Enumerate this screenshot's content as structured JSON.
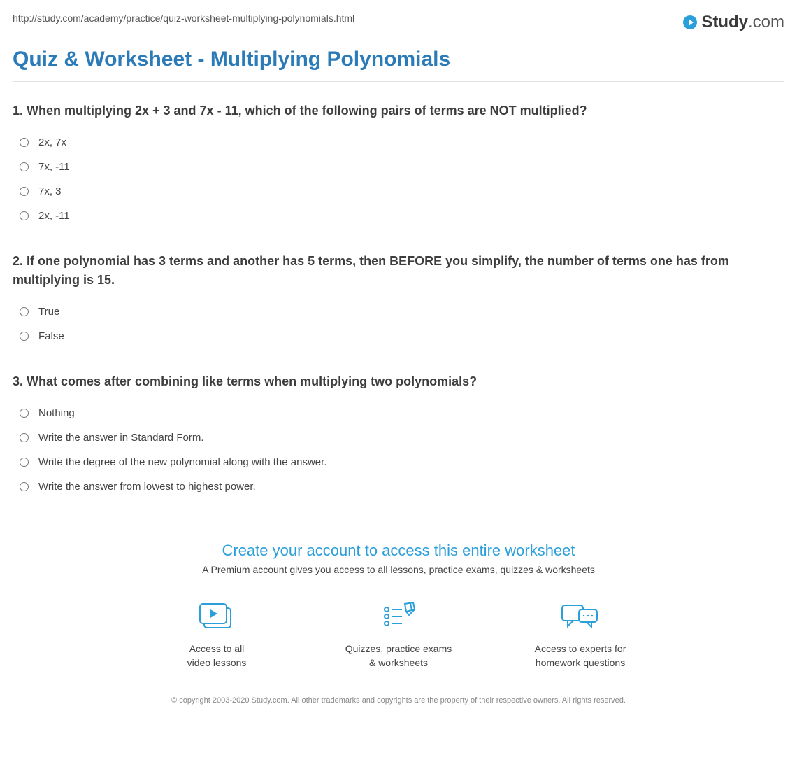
{
  "url": "http://study.com/academy/practice/quiz-worksheet-multiplying-polynomials.html",
  "logo": {
    "brand": "Study",
    "suffix": ".com"
  },
  "page_title": "Quiz & Worksheet - Multiplying Polynomials",
  "questions": [
    {
      "number": "1.",
      "text": "When multiplying 2x + 3 and 7x - 11, which of the following pairs of terms are NOT multiplied?",
      "options": [
        "2x, 7x",
        "7x, -11",
        "7x, 3",
        "2x, -11"
      ]
    },
    {
      "number": "2.",
      "text": "If one polynomial has 3 terms and another has 5 terms, then BEFORE you simplify, the number of terms one has from multiplying is 15.",
      "options": [
        "True",
        "False"
      ]
    },
    {
      "number": "3.",
      "text": "What comes after combining like terms when multiplying two polynomials?",
      "options": [
        "Nothing",
        "Write the answer in Standard Form.",
        "Write the degree of the new polynomial along with the answer.",
        "Write the answer from lowest to highest power."
      ]
    }
  ],
  "cta": {
    "title": "Create your account to access this entire worksheet",
    "subtitle": "A Premium account gives you access to all lessons, practice exams, quizzes & worksheets",
    "features": [
      {
        "line1": "Access to all",
        "line2": "video lessons"
      },
      {
        "line1": "Quizzes, practice exams",
        "line2": "& worksheets"
      },
      {
        "line1": "Access to experts for",
        "line2": "homework questions"
      }
    ]
  },
  "copyright": "© copyright 2003-2020 Study.com. All other trademarks and copyrights are the property of their respective owners. All rights reserved."
}
